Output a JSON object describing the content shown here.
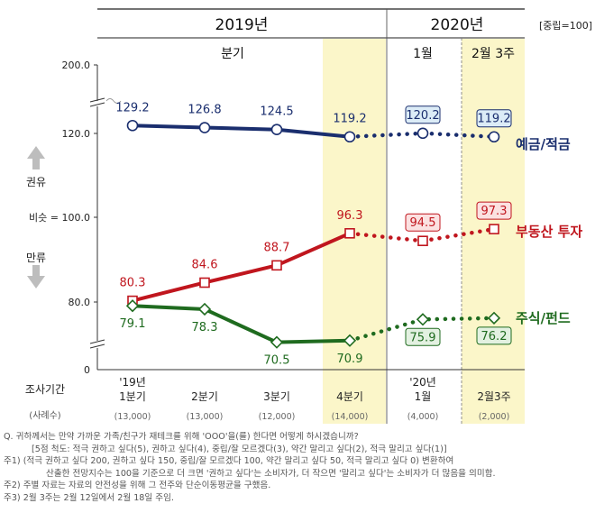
{
  "chart_data": {
    "type": "line",
    "years": [
      "2019년",
      "2020년"
    ],
    "neutral_note": "[중립=100]",
    "period_headers": {
      "quarter": "분기",
      "january": "1월",
      "feb_week3": "2월 3주"
    },
    "y_tick_labels": [
      "200.0",
      "120.0",
      "100.0",
      "80.0",
      "0"
    ],
    "y_neutral_label": "비슷 = 100.0",
    "y_side_labels": {
      "up": "권유",
      "down": "만류"
    },
    "x_header": "조사기간",
    "sample_header": "(사례수)",
    "categories": [
      {
        "line1": "'19년",
        "line2": "1분기",
        "sample": "(13,000)"
      },
      {
        "line1": "",
        "line2": "2분기",
        "sample": "(13,000)"
      },
      {
        "line1": "",
        "line2": "3분기",
        "sample": "(12,000)"
      },
      {
        "line1": "",
        "line2": "4분기",
        "sample": "(14,000)"
      },
      {
        "line1": "'20년",
        "line2": "1월",
        "sample": "(4,000)"
      },
      {
        "line1": "",
        "line2": "2월3주",
        "sample": "(2,000)"
      }
    ],
    "series": [
      {
        "name": "예금/적금",
        "color": "#1a2e6e",
        "values": [
          129.2,
          126.8,
          124.5,
          119.2,
          120.2,
          119.2
        ]
      },
      {
        "name": "부동산 투자",
        "color": "#c0161e",
        "values": [
          80.3,
          84.6,
          88.7,
          96.3,
          94.5,
          97.3
        ]
      },
      {
        "name": "주식/펀드",
        "color": "#1f6b1f",
        "values": [
          79.1,
          78.3,
          70.5,
          70.9,
          75.9,
          76.2
        ]
      }
    ],
    "highlighted_periods": [
      "4분기",
      "2월3주"
    ],
    "y_scale": "broken"
  },
  "notes": [
    "Q. 귀하께서는 만약 가까운 가족/친구가 재테크를 위해 'OOO'을(를) 한다면 어떻게 하시겠습니까?",
    "[5점 척도: 적극 권하고 싶다(5), 권하고 싶다(4), 중립/잘 모르겠다(3), 약간 말리고 싶다(2), 적극 말리고 싶다(1)]",
    "주1) (적극 권하고 싶다 200, 권하고 싶다 150, 중립/잘 모르겠다 100, 약간 말리고 싶다 50, 적극 말리고 싶다 0) 변환하여",
    "산출한 전망지수는 100을 기준으로 더 크면 '권하고 싶다'는 소비자가, 더 작으면 '말리고 싶다'는 소비자가 더 많음을 의미함.",
    "주2) 주별 자료는 자료의 안전성을 위해 그 전주와 단순이동평균을 구했음.",
    "주3) 2월 3주는 2월 12일에서 2월 18일 주임."
  ]
}
